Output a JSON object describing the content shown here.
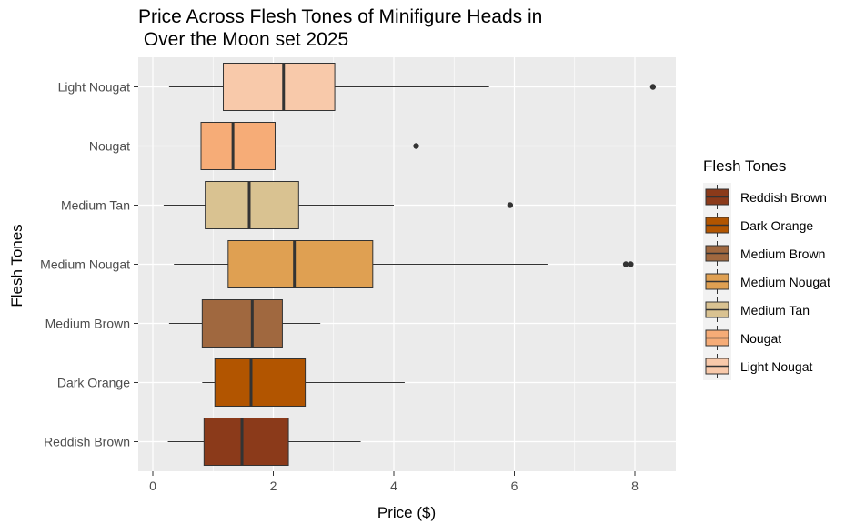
{
  "chart_data": {
    "type": "boxplot",
    "orientation": "horizontal",
    "title": "Price Across Flesh Tones of Minifigure Heads in\n Over the Moon set 2025",
    "xlabel": "Price ($)",
    "ylabel": "Flesh Tones",
    "xlim": [
      -0.2,
      8.7
    ],
    "x_ticks": [
      0,
      2,
      4,
      6,
      8
    ],
    "grid": true,
    "panel_background": "#EBEBEB",
    "legend": {
      "title": "Flesh Tones",
      "position": "right",
      "entries": [
        "Reddish Brown",
        "Dark Orange",
        "Medium Brown",
        "Medium Nougat",
        "Medium Tan",
        "Nougat",
        "Light Nougat"
      ]
    },
    "categories": [
      "Reddish Brown",
      "Dark Orange",
      "Medium Brown",
      "Medium Nougat",
      "Medium Tan",
      "Nougat",
      "Light Nougat"
    ],
    "series": [
      {
        "name": "Reddish Brown",
        "color": "#8B3A1A",
        "whisker_low": 0.25,
        "q1": 0.85,
        "median": 1.48,
        "q3": 2.25,
        "whisker_high": 3.45,
        "outliers": []
      },
      {
        "name": "Dark Orange",
        "color": "#B25500",
        "whisker_low": 0.82,
        "q1": 1.03,
        "median": 1.63,
        "q3": 2.53,
        "whisker_high": 4.18,
        "outliers": []
      },
      {
        "name": "Medium Brown",
        "color": "#A0683F",
        "whisker_low": 0.27,
        "q1": 0.82,
        "median": 1.65,
        "q3": 2.15,
        "whisker_high": 2.78,
        "outliers": []
      },
      {
        "name": "Medium Nougat",
        "color": "#DFA052",
        "whisker_low": 0.35,
        "q1": 1.25,
        "median": 2.35,
        "q3": 3.65,
        "whisker_high": 6.55,
        "outliers": [
          7.85,
          7.93
        ]
      },
      {
        "name": "Medium Tan",
        "color": "#D9C291",
        "whisker_low": 0.18,
        "q1": 0.87,
        "median": 1.6,
        "q3": 2.42,
        "whisker_high": 4.0,
        "outliers": [
          5.93
        ]
      },
      {
        "name": "Nougat",
        "color": "#F6AC77",
        "whisker_low": 0.35,
        "q1": 0.8,
        "median": 1.33,
        "q3": 2.03,
        "whisker_high": 2.93,
        "outliers": [
          4.37
        ]
      },
      {
        "name": "Light Nougat",
        "color": "#F8C9AA",
        "whisker_low": 0.27,
        "q1": 1.17,
        "median": 2.17,
        "q3": 3.02,
        "whisker_high": 5.58,
        "outliers": [
          8.3
        ]
      }
    ]
  }
}
